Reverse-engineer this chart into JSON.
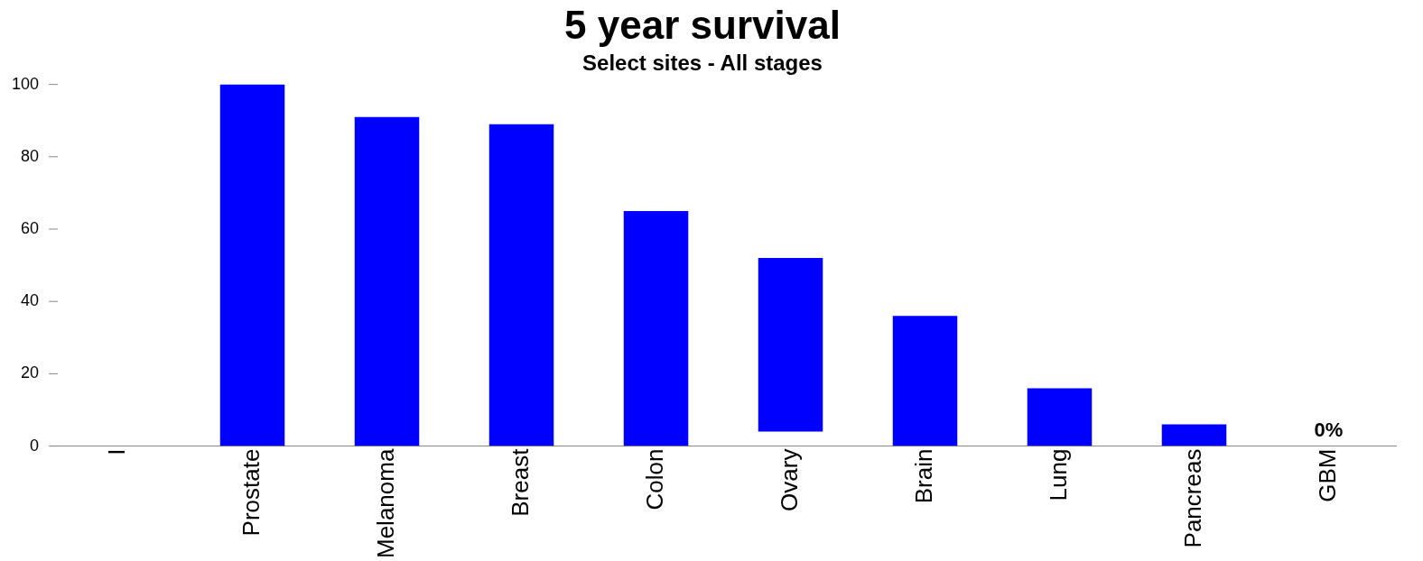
{
  "chart_data": {
    "type": "bar",
    "title": "5 year survival",
    "subtitle": "Select sites - All stages",
    "categories": [
      "I",
      "Prostate",
      "Melanoma",
      "Breast",
      "Colon",
      "Ovary",
      "Brain",
      "Lung",
      "Pancreas",
      "GBM"
    ],
    "values": [
      null,
      100,
      91,
      89,
      65,
      48,
      36,
      16,
      6,
      0
    ],
    "base": [
      null,
      0,
      0,
      0,
      0,
      4,
      0,
      0,
      0,
      null
    ],
    "value_labels": [
      null,
      null,
      null,
      null,
      null,
      null,
      null,
      null,
      null,
      "0%"
    ],
    "color": "#0000ff",
    "ylim": [
      0,
      100
    ],
    "yticks": [
      0,
      20,
      40,
      60,
      80,
      100
    ],
    "grid": false,
    "legend": false
  }
}
